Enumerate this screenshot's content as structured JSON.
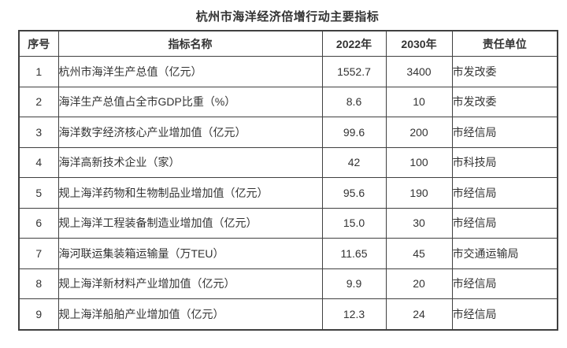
{
  "page": {
    "background": "#ffffff",
    "text_color": "#333333",
    "border_color": "#404040"
  },
  "title": "杭州市海洋经济倍增行动主要指标",
  "table": {
    "columns": {
      "no": "序号",
      "name": "指标名称",
      "y2022": "2022年",
      "y2030": "2030年",
      "unit": "责任单位"
    },
    "rows": [
      {
        "no": "1",
        "name": "杭州市海洋生产总值（亿元）",
        "y2022": "1552.7",
        "y2030": "3400",
        "unit": "市发改委"
      },
      {
        "no": "2",
        "name": "海洋生产总值占全市GDP比重（%）",
        "y2022": "8.6",
        "y2030": "10",
        "unit": "市发改委"
      },
      {
        "no": "3",
        "name": "海洋数字经济核心产业增加值（亿元）",
        "y2022": "99.6",
        "y2030": "200",
        "unit": "市经信局"
      },
      {
        "no": "4",
        "name": "海洋高新技术企业（家）",
        "y2022": "42",
        "y2030": "100",
        "unit": "市科技局"
      },
      {
        "no": "5",
        "name": "规上海洋药物和生物制品业增加值（亿元）",
        "y2022": "95.6",
        "y2030": "190",
        "unit": "市经信局"
      },
      {
        "no": "6",
        "name": "规上海洋工程装备制造业增加值（亿元）",
        "y2022": "15.0",
        "y2030": "30",
        "unit": "市经信局"
      },
      {
        "no": "7",
        "name": "海河联运集装箱运输量（万TEU）",
        "y2022": "11.65",
        "y2030": "45",
        "unit": "市交通运输局"
      },
      {
        "no": "8",
        "name": "规上海洋新材料产业增加值（亿元）",
        "y2022": "9.9",
        "y2030": "20",
        "unit": "市经信局"
      },
      {
        "no": "9",
        "name": "规上海洋船舶产业增加值（亿元）",
        "y2022": "12.3",
        "y2030": "24",
        "unit": "市经信局"
      }
    ]
  }
}
